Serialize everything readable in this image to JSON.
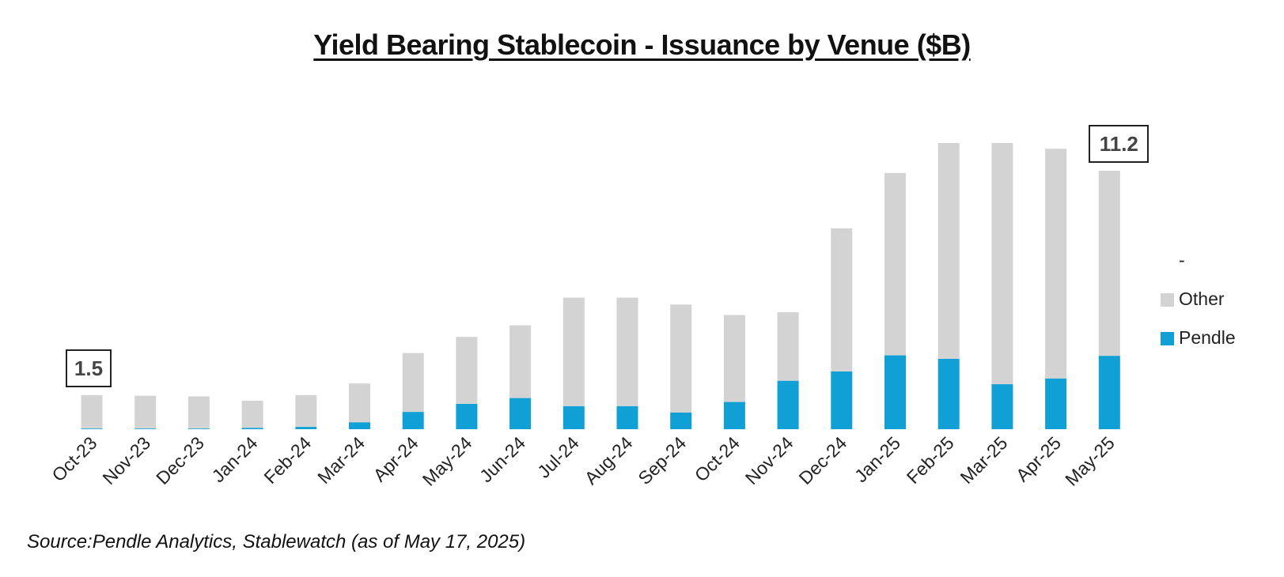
{
  "chart_data": {
    "type": "bar",
    "stacked": true,
    "title": "Yield Bearing Stablecoin - Issuance by Venue ($B)",
    "xlabel": "",
    "ylabel": "",
    "ylim": [
      0,
      13
    ],
    "grid": false,
    "legend_position": "right",
    "legend_entries": [
      "-",
      "Other",
      "Pendle"
    ],
    "categories": [
      "Oct-23",
      "Nov-23",
      "Dec-23",
      "Jan-24",
      "Feb-24",
      "Mar-24",
      "Apr-24",
      "May-24",
      "Jun-24",
      "Jul-24",
      "Aug-24",
      "Sep-24",
      "Oct-24",
      "Nov-24",
      "Dec-24",
      "Jan-25",
      "Feb-25",
      "Mar-25",
      "Apr-25",
      "May-25"
    ],
    "series": [
      {
        "name": "Pendle",
        "color": "#10A0D6",
        "values": [
          0.03,
          0.03,
          0.03,
          0.06,
          0.1,
          0.3,
          0.75,
          1.1,
          1.35,
          1.0,
          1.0,
          0.72,
          1.18,
          2.1,
          2.5,
          3.2,
          3.05,
          1.95,
          2.2,
          3.18
        ]
      },
      {
        "name": "Other",
        "color": "#D3D3D3",
        "values": [
          1.45,
          1.42,
          1.39,
          1.17,
          1.38,
          1.68,
          2.55,
          2.9,
          3.15,
          4.7,
          4.7,
          4.68,
          3.77,
          2.97,
          6.2,
          7.9,
          9.35,
          10.45,
          9.95,
          8.02
        ]
      }
    ],
    "annotations": [
      {
        "category": "Oct-23",
        "label": "1.5"
      },
      {
        "category": "May-25",
        "label": "11.2"
      }
    ],
    "source": "Source:Pendle Analytics, Stablewatch (as of May 17, 2025)"
  }
}
